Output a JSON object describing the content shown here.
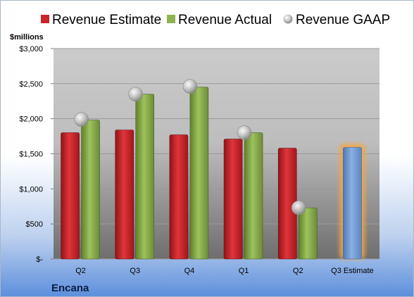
{
  "chart_data": {
    "type": "bar",
    "unit_label": "$millions",
    "company": "Encana",
    "categories": [
      "Q2",
      "Q3",
      "Q4",
      "Q1",
      "Q2",
      "Q3 Estimate"
    ],
    "ylim": [
      0,
      3000
    ],
    "y_ticks": [
      0,
      500,
      1000,
      1500,
      2000,
      2500,
      3000
    ],
    "y_tick_labels": [
      "$-",
      "$500",
      "$1,000",
      "$1,500",
      "$2,000",
      "$2,500",
      "$3,000"
    ],
    "grid": true,
    "legend_position": "top",
    "series": [
      {
        "name": "Revenue Estimate",
        "kind": "bar",
        "color": "#c8242b",
        "values": [
          1800,
          1840,
          1770,
          1710,
          1580,
          null
        ]
      },
      {
        "name": "Revenue Actual",
        "kind": "bar",
        "color": "#8fb34f",
        "values": [
          1980,
          2350,
          2450,
          1800,
          730,
          null
        ]
      },
      {
        "name": "Revenue GAAP",
        "kind": "marker",
        "color": "#b9b9b9",
        "values": [
          1990,
          2350,
          2460,
          1800,
          730,
          null
        ]
      }
    ],
    "estimate_bar": {
      "category_index": 5,
      "value": 1590,
      "color": "#6f9bd6",
      "glow": "#f7a640"
    }
  }
}
